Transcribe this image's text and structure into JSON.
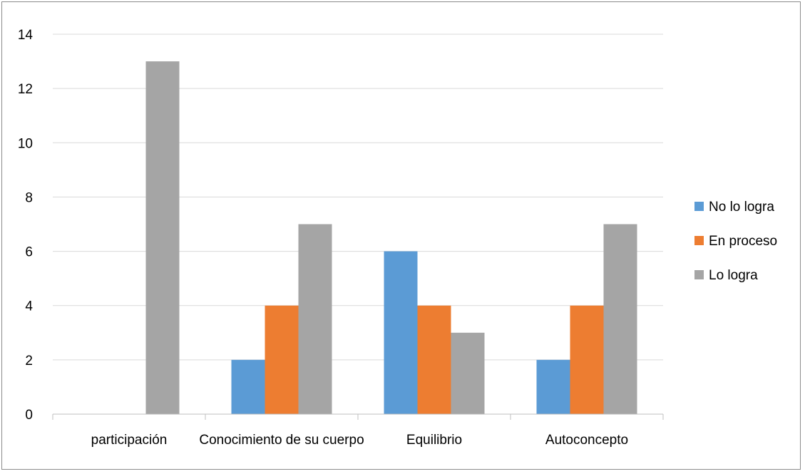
{
  "chart_data": {
    "type": "bar",
    "categories": [
      "participación",
      "Conocimiento de su cuerpo",
      "Equilibrio",
      "Autoconcepto"
    ],
    "series": [
      {
        "name": "No lo logra",
        "values": [
          0,
          2,
          6,
          2
        ],
        "color": "#5b9bd5"
      },
      {
        "name": "En proceso",
        "values": [
          0,
          4,
          4,
          4
        ],
        "color": "#ed7d31"
      },
      {
        "name": "Lo logra",
        "values": [
          13,
          7,
          3,
          7
        ],
        "color": "#a5a5a5"
      }
    ],
    "title": "",
    "xlabel": "",
    "ylabel": "",
    "ylim": [
      0,
      14
    ],
    "yticks": [
      0,
      2,
      4,
      6,
      8,
      10,
      12,
      14
    ],
    "grid": true,
    "legend_position": "right"
  }
}
